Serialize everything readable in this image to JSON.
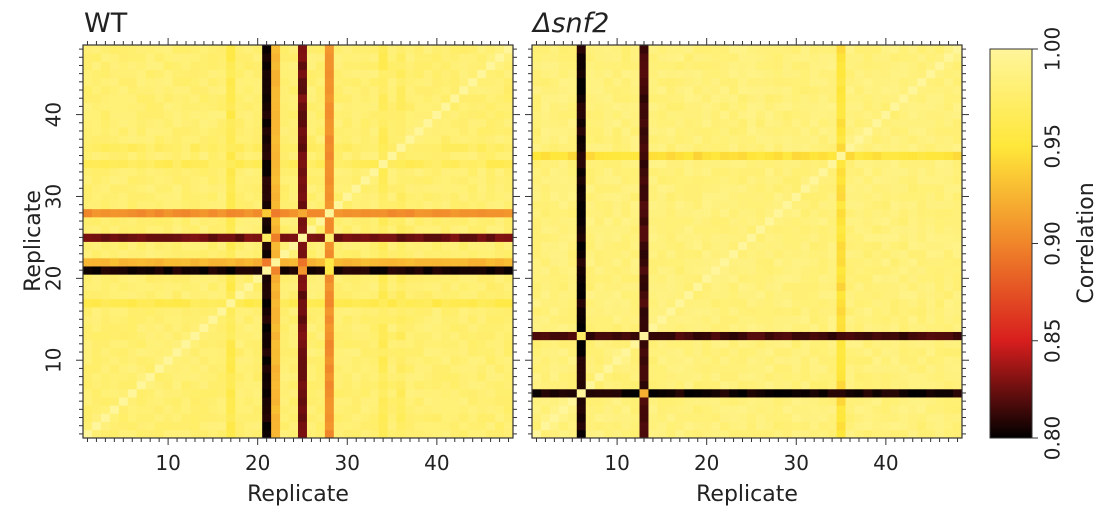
{
  "chart_data": [
    {
      "type": "heatmap",
      "title": "WT",
      "xlabel": "Replicate",
      "ylabel": "Replicate",
      "n": 48,
      "xlim": [
        0.5,
        48.5
      ],
      "ylim": [
        0.5,
        48.5
      ],
      "x_ticks": [
        10,
        20,
        30,
        40
      ],
      "y_ticks": [
        10,
        20,
        30,
        40
      ],
      "outlier_replicates": [
        {
          "replicate": 21,
          "correlation": 0.8
        },
        {
          "replicate": 22,
          "correlation": 0.92
        },
        {
          "replicate": 25,
          "correlation": 0.82
        },
        {
          "replicate": 28,
          "correlation": 0.9
        }
      ],
      "weak_replicates": [
        {
          "replicate": 17,
          "correlation": 0.955
        },
        {
          "replicate": 34,
          "correlation": 0.96
        },
        {
          "replicate": 36,
          "correlation": 0.965
        }
      ],
      "typical_correlation": 0.985
    },
    {
      "type": "heatmap",
      "title": "Δsnf2",
      "xlabel": "Replicate",
      "ylabel": "",
      "n": 48,
      "xlim": [
        0.5,
        48.5
      ],
      "ylim": [
        0.5,
        48.5
      ],
      "x_ticks": [
        10,
        20,
        30,
        40
      ],
      "y_ticks": [],
      "outlier_replicates": [
        {
          "replicate": 6,
          "correlation": 0.8
        },
        {
          "replicate": 13,
          "correlation": 0.81
        }
      ],
      "weak_replicates": [
        {
          "replicate": 35,
          "correlation": 0.94
        }
      ],
      "typical_correlation": 0.99
    }
  ],
  "colorbar": {
    "label": "Correlation",
    "min": 0.8,
    "max": 1.0,
    "ticks": [
      "0.80",
      "0.85",
      "0.90",
      "0.95",
      "1.00"
    ],
    "colormap": [
      "#000000",
      "#d81e1e",
      "#f0852a",
      "#ffe73a",
      "#fff59b"
    ]
  }
}
